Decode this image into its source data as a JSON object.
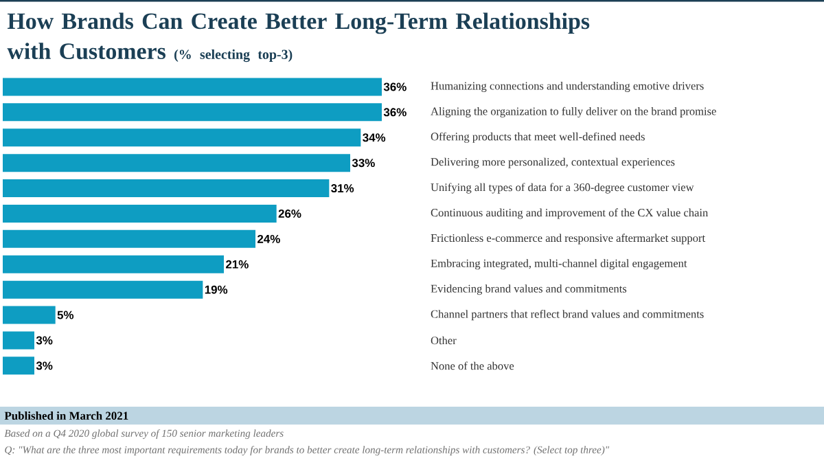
{
  "chart_data": {
    "type": "bar",
    "orientation": "horizontal",
    "title": "How Brands Can Create Better Long-Term Relationships with Customers",
    "subtitle": "(% selecting top-3)",
    "categories": [
      "Humanizing connections and understanding emotive drivers",
      "Aligning the organization to fully deliver on the brand promise",
      "Offering products that meet well-defined needs",
      "Delivering more personalized, contextual experiences",
      "Unifying all types of data for a 360-degree customer view",
      "Continuous auditing and improvement of the CX value chain",
      "Frictionless e-commerce and responsive aftermarket support",
      "Embracing integrated, multi-channel digital engagement",
      "Evidencing brand values and commitments",
      "Channel partners that reflect brand values and commitments",
      "Other",
      "None of the above"
    ],
    "values": [
      36,
      36,
      34,
      33,
      31,
      26,
      24,
      21,
      19,
      5,
      3,
      3
    ],
    "value_labels": [
      "36%",
      "36%",
      "34%",
      "33%",
      "31%",
      "26%",
      "24%",
      "21%",
      "19%",
      "5%",
      "3%",
      "3%"
    ],
    "color": "#0e9dc2",
    "tick_labels": "y",
    "annotations": [
      "Published in March 2021",
      "Based on a Q4 2020 global survey  of 150 senior marketing leaders",
      "Q: \"What are the three most important requirements today for brands to better create long-term relationships with customers? (Select top three)\""
    ]
  }
}
